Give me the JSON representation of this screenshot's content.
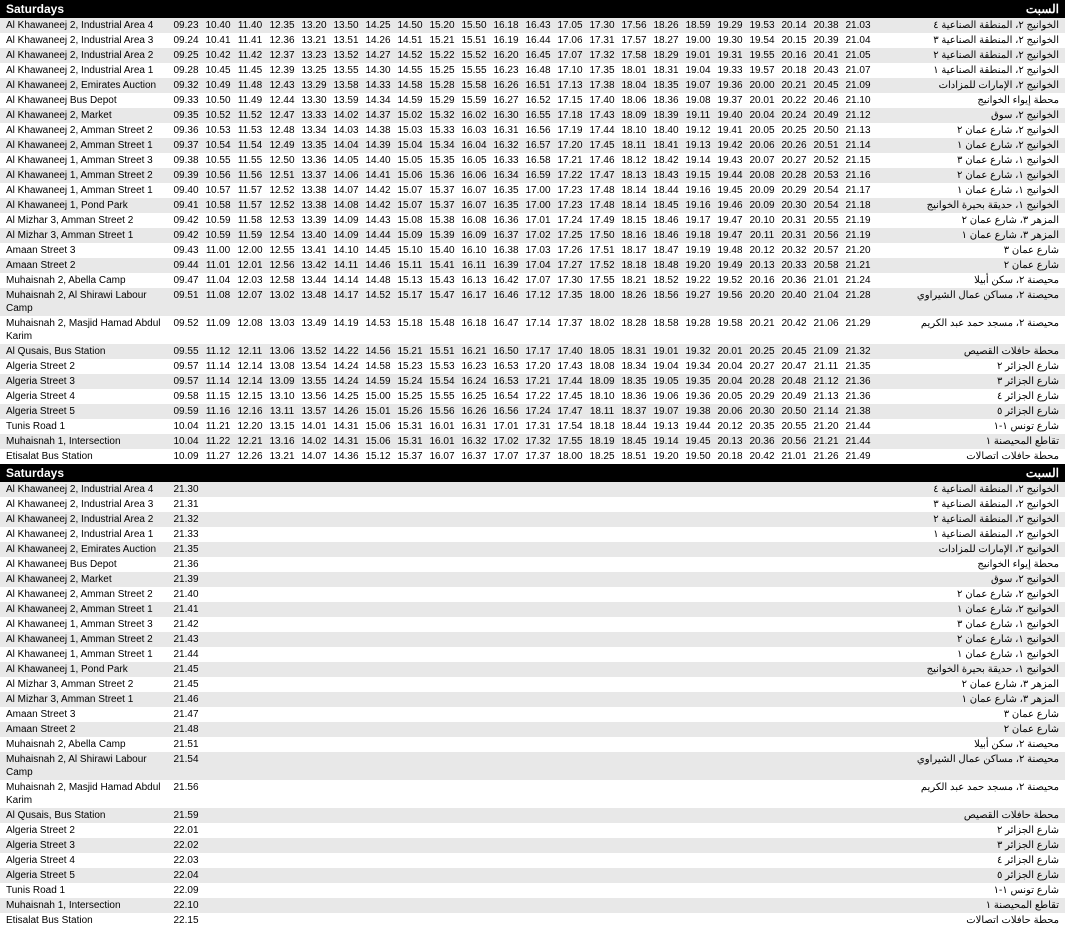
{
  "header_en": "Saturdays",
  "header_ar": "السبت",
  "stops": [
    {
      "en": "Al Khawaneej 2, Industrial Area 4",
      "ar": "الخوانيج ٢، المنطقة الصناعية ٤"
    },
    {
      "en": "Al Khawaneej 2, Industrial Area 3",
      "ar": "الخوانيج ٢، المنطقة الصناعية ٣"
    },
    {
      "en": "Al Khawaneej 2, Industrial Area 2",
      "ar": "الخوانيج ٢، المنطقة الصناعية ٢"
    },
    {
      "en": "Al Khawaneej 2, Industrial Area 1",
      "ar": "الخوانيج ٢، المنطقة الصناعية ١"
    },
    {
      "en": "Al Khawaneej 2, Emirates Auction",
      "ar": "الخوانيج ٢، الإمارات للمزادات"
    },
    {
      "en": "Al Khawaneej Bus Depot",
      "ar": "محطة إيواء الخوانيج"
    },
    {
      "en": "Al Khawaneej 2, Market",
      "ar": "الخوانيج ٢، سوق"
    },
    {
      "en": "Al Khawaneej 2, Amman Street 2",
      "ar": "الخوانيج ٢، شارع عمان ٢"
    },
    {
      "en": "Al Khawaneej 2, Amman Street 1",
      "ar": "الخوانيج ٢، شارع عمان ١"
    },
    {
      "en": "Al Khawaneej 1, Amman Street 3",
      "ar": "الخوانيج ١، شارع عمان ٣"
    },
    {
      "en": "Al Khawaneej 1, Amman Street 2",
      "ar": "الخوانيج ١، شارع عمان ٢"
    },
    {
      "en": "Al Khawaneej 1, Amman Street 1",
      "ar": "الخوانيج ١، شارع عمان ١"
    },
    {
      "en": "Al Khawaneej 1, Pond Park",
      "ar": "الخوانيج ١، حديقة بحيرة الخوانيج"
    },
    {
      "en": "Al Mizhar 3, Amman Street 2",
      "ar": "المزهر ٣، شارع عمان ٢"
    },
    {
      "en": "Al Mizhar 3, Amman Street 1",
      "ar": "المزهر ٣، شارع عمان ١"
    },
    {
      "en": "Amaan Street 3",
      "ar": "شارع عمان ٣"
    },
    {
      "en": "Amaan Street 2",
      "ar": "شارع عمان ٢"
    },
    {
      "en": "Muhaisnah 2, Abella Camp",
      "ar": "محيصنة ٢، سكن أبيلا"
    },
    {
      "en": "Muhaisnah 2, Al Shirawi Labour Camp",
      "ar": "محيصنة ٢، مساكن عمال الشيراوي"
    },
    {
      "en": "Muhaisnah 2, Masjid Hamad Abdul Karim",
      "ar": "محيصنة ٢، مسجد حمد عبد الكريم"
    },
    {
      "en": "Al Qusais, Bus Station",
      "ar": "محطة حافلات القصيص"
    },
    {
      "en": "Algeria Street 2",
      "ar": "شارع الجزائر ٢"
    },
    {
      "en": "Algeria Street 3",
      "ar": "شارع الجزائر ٣"
    },
    {
      "en": "Algeria Street 4",
      "ar": "شارع الجزائر ٤"
    },
    {
      "en": "Algeria Street 5",
      "ar": "شارع الجزائر ٥"
    },
    {
      "en": "Tunis Road 1",
      "ar": "شارع تونس ١-١"
    },
    {
      "en": "Muhaisnah 1, Intersection",
      "ar": "تقاطع المحيصنة ١"
    },
    {
      "en": "Etisalat Bus Station",
      "ar": "محطة حافلات اتصالات"
    }
  ],
  "block1_times": [
    [
      "09.23",
      "10.40",
      "11.40",
      "12.35",
      "13.20",
      "13.50",
      "14.25",
      "14.50",
      "15.20",
      "15.50",
      "16.18",
      "16.43",
      "17.05",
      "17.30",
      "17.56",
      "18.26",
      "18.59",
      "19.29",
      "19.53",
      "20.14",
      "20.38",
      "21.03"
    ],
    [
      "09.24",
      "10.41",
      "11.41",
      "12.36",
      "13.21",
      "13.51",
      "14.26",
      "14.51",
      "15.21",
      "15.51",
      "16.19",
      "16.44",
      "17.06",
      "17.31",
      "17.57",
      "18.27",
      "19.00",
      "19.30",
      "19.54",
      "20.15",
      "20.39",
      "21.04"
    ],
    [
      "09.25",
      "10.42",
      "11.42",
      "12.37",
      "13.23",
      "13.52",
      "14.27",
      "14.52",
      "15.22",
      "15.52",
      "16.20",
      "16.45",
      "17.07",
      "17.32",
      "17.58",
      "18.29",
      "19.01",
      "19.31",
      "19.55",
      "20.16",
      "20.41",
      "21.05"
    ],
    [
      "09.28",
      "10.45",
      "11.45",
      "12.39",
      "13.25",
      "13.55",
      "14.30",
      "14.55",
      "15.25",
      "15.55",
      "16.23",
      "16.48",
      "17.10",
      "17.35",
      "18.01",
      "18.31",
      "19.04",
      "19.33",
      "19.57",
      "20.18",
      "20.43",
      "21.07"
    ],
    [
      "09.32",
      "10.49",
      "11.48",
      "12.43",
      "13.29",
      "13.58",
      "14.33",
      "14.58",
      "15.28",
      "15.58",
      "16.26",
      "16.51",
      "17.13",
      "17.38",
      "18.04",
      "18.35",
      "19.07",
      "19.36",
      "20.00",
      "20.21",
      "20.45",
      "21.09"
    ],
    [
      "09.33",
      "10.50",
      "11.49",
      "12.44",
      "13.30",
      "13.59",
      "14.34",
      "14.59",
      "15.29",
      "15.59",
      "16.27",
      "16.52",
      "17.15",
      "17.40",
      "18.06",
      "18.36",
      "19.08",
      "19.37",
      "20.01",
      "20.22",
      "20.46",
      "21.10"
    ],
    [
      "09.35",
      "10.52",
      "11.52",
      "12.47",
      "13.33",
      "14.02",
      "14.37",
      "15.02",
      "15.32",
      "16.02",
      "16.30",
      "16.55",
      "17.18",
      "17.43",
      "18.09",
      "18.39",
      "19.11",
      "19.40",
      "20.04",
      "20.24",
      "20.49",
      "21.12"
    ],
    [
      "09.36",
      "10.53",
      "11.53",
      "12.48",
      "13.34",
      "14.03",
      "14.38",
      "15.03",
      "15.33",
      "16.03",
      "16.31",
      "16.56",
      "17.19",
      "17.44",
      "18.10",
      "18.40",
      "19.12",
      "19.41",
      "20.05",
      "20.25",
      "20.50",
      "21.13"
    ],
    [
      "09.37",
      "10.54",
      "11.54",
      "12.49",
      "13.35",
      "14.04",
      "14.39",
      "15.04",
      "15.34",
      "16.04",
      "16.32",
      "16.57",
      "17.20",
      "17.45",
      "18.11",
      "18.41",
      "19.13",
      "19.42",
      "20.06",
      "20.26",
      "20.51",
      "21.14"
    ],
    [
      "09.38",
      "10.55",
      "11.55",
      "12.50",
      "13.36",
      "14.05",
      "14.40",
      "15.05",
      "15.35",
      "16.05",
      "16.33",
      "16.58",
      "17.21",
      "17.46",
      "18.12",
      "18.42",
      "19.14",
      "19.43",
      "20.07",
      "20.27",
      "20.52",
      "21.15"
    ],
    [
      "09.39",
      "10.56",
      "11.56",
      "12.51",
      "13.37",
      "14.06",
      "14.41",
      "15.06",
      "15.36",
      "16.06",
      "16.34",
      "16.59",
      "17.22",
      "17.47",
      "18.13",
      "18.43",
      "19.15",
      "19.44",
      "20.08",
      "20.28",
      "20.53",
      "21.16"
    ],
    [
      "09.40",
      "10.57",
      "11.57",
      "12.52",
      "13.38",
      "14.07",
      "14.42",
      "15.07",
      "15.37",
      "16.07",
      "16.35",
      "17.00",
      "17.23",
      "17.48",
      "18.14",
      "18.44",
      "19.16",
      "19.45",
      "20.09",
      "20.29",
      "20.54",
      "21.17"
    ],
    [
      "09.41",
      "10.58",
      "11.57",
      "12.52",
      "13.38",
      "14.08",
      "14.42",
      "15.07",
      "15.37",
      "16.07",
      "16.35",
      "17.00",
      "17.23",
      "17.48",
      "18.14",
      "18.45",
      "19.16",
      "19.46",
      "20.09",
      "20.30",
      "20.54",
      "21.18"
    ],
    [
      "09.42",
      "10.59",
      "11.58",
      "12.53",
      "13.39",
      "14.09",
      "14.43",
      "15.08",
      "15.38",
      "16.08",
      "16.36",
      "17.01",
      "17.24",
      "17.49",
      "18.15",
      "18.46",
      "19.17",
      "19.47",
      "20.10",
      "20.31",
      "20.55",
      "21.19"
    ],
    [
      "09.42",
      "10.59",
      "11.59",
      "12.54",
      "13.40",
      "14.09",
      "14.44",
      "15.09",
      "15.39",
      "16.09",
      "16.37",
      "17.02",
      "17.25",
      "17.50",
      "18.16",
      "18.46",
      "19.18",
      "19.47",
      "20.11",
      "20.31",
      "20.56",
      "21.19"
    ],
    [
      "09.43",
      "11.00",
      "12.00",
      "12.55",
      "13.41",
      "14.10",
      "14.45",
      "15.10",
      "15.40",
      "16.10",
      "16.38",
      "17.03",
      "17.26",
      "17.51",
      "18.17",
      "18.47",
      "19.19",
      "19.48",
      "20.12",
      "20.32",
      "20.57",
      "21.20"
    ],
    [
      "09.44",
      "11.01",
      "12.01",
      "12.56",
      "13.42",
      "14.11",
      "14.46",
      "15.11",
      "15.41",
      "16.11",
      "16.39",
      "17.04",
      "17.27",
      "17.52",
      "18.18",
      "18.48",
      "19.20",
      "19.49",
      "20.13",
      "20.33",
      "20.58",
      "21.21"
    ],
    [
      "09.47",
      "11.04",
      "12.03",
      "12.58",
      "13.44",
      "14.14",
      "14.48",
      "15.13",
      "15.43",
      "16.13",
      "16.42",
      "17.07",
      "17.30",
      "17.55",
      "18.21",
      "18.52",
      "19.22",
      "19.52",
      "20.16",
      "20.36",
      "21.01",
      "21.24"
    ],
    [
      "09.51",
      "11.08",
      "12.07",
      "13.02",
      "13.48",
      "14.17",
      "14.52",
      "15.17",
      "15.47",
      "16.17",
      "16.46",
      "17.12",
      "17.35",
      "18.00",
      "18.26",
      "18.56",
      "19.27",
      "19.56",
      "20.20",
      "20.40",
      "21.04",
      "21.28"
    ],
    [
      "09.52",
      "11.09",
      "12.08",
      "13.03",
      "13.49",
      "14.19",
      "14.53",
      "15.18",
      "15.48",
      "16.18",
      "16.47",
      "17.14",
      "17.37",
      "18.02",
      "18.28",
      "18.58",
      "19.28",
      "19.58",
      "20.21",
      "20.42",
      "21.06",
      "21.29"
    ],
    [
      "09.55",
      "11.12",
      "12.11",
      "13.06",
      "13.52",
      "14.22",
      "14.56",
      "15.21",
      "15.51",
      "16.21",
      "16.50",
      "17.17",
      "17.40",
      "18.05",
      "18.31",
      "19.01",
      "19.32",
      "20.01",
      "20.25",
      "20.45",
      "21.09",
      "21.32"
    ],
    [
      "09.57",
      "11.14",
      "12.14",
      "13.08",
      "13.54",
      "14.24",
      "14.58",
      "15.23",
      "15.53",
      "16.23",
      "16.53",
      "17.20",
      "17.43",
      "18.08",
      "18.34",
      "19.04",
      "19.34",
      "20.04",
      "20.27",
      "20.47",
      "21.11",
      "21.35"
    ],
    [
      "09.57",
      "11.14",
      "12.14",
      "13.09",
      "13.55",
      "14.24",
      "14.59",
      "15.24",
      "15.54",
      "16.24",
      "16.53",
      "17.21",
      "17.44",
      "18.09",
      "18.35",
      "19.05",
      "19.35",
      "20.04",
      "20.28",
      "20.48",
      "21.12",
      "21.36"
    ],
    [
      "09.58",
      "11.15",
      "12.15",
      "13.10",
      "13.56",
      "14.25",
      "15.00",
      "15.25",
      "15.55",
      "16.25",
      "16.54",
      "17.22",
      "17.45",
      "18.10",
      "18.36",
      "19.06",
      "19.36",
      "20.05",
      "20.29",
      "20.49",
      "21.13",
      "21.36"
    ],
    [
      "09.59",
      "11.16",
      "12.16",
      "13.11",
      "13.57",
      "14.26",
      "15.01",
      "15.26",
      "15.56",
      "16.26",
      "16.56",
      "17.24",
      "17.47",
      "18.11",
      "18.37",
      "19.07",
      "19.38",
      "20.06",
      "20.30",
      "20.50",
      "21.14",
      "21.38"
    ],
    [
      "10.04",
      "11.21",
      "12.20",
      "13.15",
      "14.01",
      "14.31",
      "15.06",
      "15.31",
      "16.01",
      "16.31",
      "17.01",
      "17.31",
      "17.54",
      "18.18",
      "18.44",
      "19.13",
      "19.44",
      "20.12",
      "20.35",
      "20.55",
      "21.20",
      "21.44"
    ],
    [
      "10.04",
      "11.22",
      "12.21",
      "13.16",
      "14.02",
      "14.31",
      "15.06",
      "15.31",
      "16.01",
      "16.32",
      "17.02",
      "17.32",
      "17.55",
      "18.19",
      "18.45",
      "19.14",
      "19.45",
      "20.13",
      "20.36",
      "20.56",
      "21.21",
      "21.44"
    ],
    [
      "10.09",
      "11.27",
      "12.26",
      "13.21",
      "14.07",
      "14.36",
      "15.12",
      "15.37",
      "16.07",
      "16.37",
      "17.07",
      "17.37",
      "18.00",
      "18.25",
      "18.51",
      "19.20",
      "19.50",
      "20.18",
      "20.42",
      "21.01",
      "21.26",
      "21.49"
    ]
  ],
  "block2_times": [
    [
      "21.30"
    ],
    [
      "21.31"
    ],
    [
      "21.32"
    ],
    [
      "21.33"
    ],
    [
      "21.35"
    ],
    [
      "21.36"
    ],
    [
      "21.39"
    ],
    [
      "21.40"
    ],
    [
      "21.41"
    ],
    [
      "21.42"
    ],
    [
      "21.43"
    ],
    [
      "21.44"
    ],
    [
      "21.45"
    ],
    [
      "21.45"
    ],
    [
      "21.46"
    ],
    [
      "21.47"
    ],
    [
      "21.48"
    ],
    [
      "21.51"
    ],
    [
      "21.54"
    ],
    [
      "21.56"
    ],
    [
      "21.59"
    ],
    [
      "22.01"
    ],
    [
      "22.02"
    ],
    [
      "22.03"
    ],
    [
      "22.04"
    ],
    [
      "22.09"
    ],
    [
      "22.10"
    ],
    [
      "22.15"
    ]
  ]
}
